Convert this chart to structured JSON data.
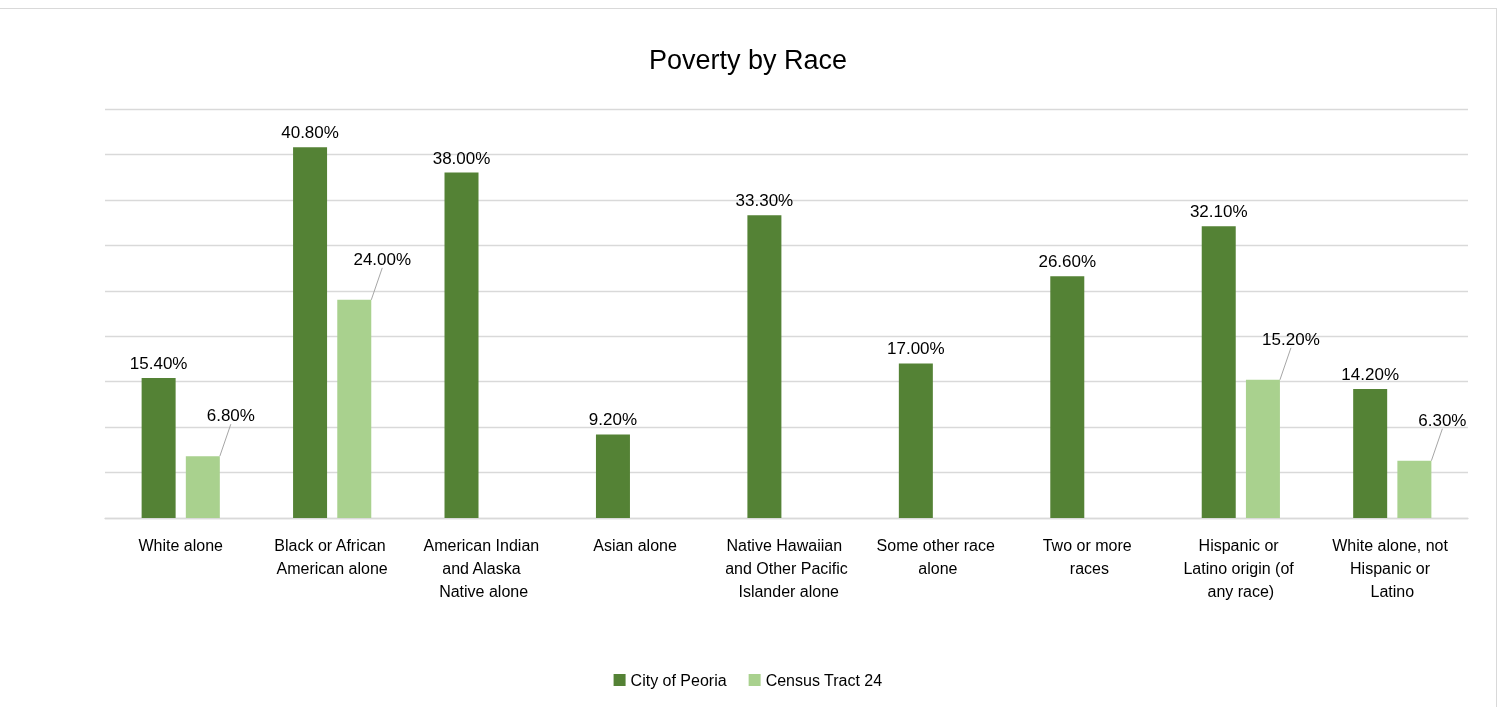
{
  "chart_data": {
    "type": "bar",
    "title": "Poverty by Race",
    "categories": [
      "White alone",
      "Black or African American alone",
      "American Indian and Alaska Native alone",
      "Asian alone",
      "Native Hawaiian and Other Pacific Islander alone",
      "Some other race alone",
      "Two or more races",
      "Hispanic or Latino origin (of any race)",
      "White alone, not Hispanic or Latino"
    ],
    "series": [
      {
        "name": "City of Peoria",
        "color": "#548235",
        "values": [
          15.4,
          40.8,
          38.0,
          9.2,
          33.3,
          17.0,
          26.6,
          32.1,
          14.2
        ],
        "value_labels": [
          "15.40%",
          "40.80%",
          "38.00%",
          "9.20%",
          "33.30%",
          "17.00%",
          "26.60%",
          "32.10%",
          "14.20%"
        ]
      },
      {
        "name": "Census Tract 24",
        "color": "#a9d18e",
        "values": [
          6.8,
          24.0,
          null,
          null,
          null,
          null,
          null,
          15.2,
          6.3
        ],
        "value_labels": [
          "6.80%",
          "24.00%",
          null,
          null,
          null,
          null,
          null,
          "15.20%",
          "6.30%"
        ]
      }
    ],
    "ylim": [
      0,
      45
    ],
    "yticks": [
      {
        "value": 0,
        "label": null
      },
      {
        "value": 5,
        "label": null
      },
      {
        "value": 10,
        "label": null
      },
      {
        "value": 15,
        "label": null
      },
      {
        "value": 20,
        "label": null
      },
      {
        "value": 25,
        "label": null
      },
      {
        "value": 30,
        "label": null
      },
      {
        "value": 35,
        "label": null
      },
      {
        "value": 40,
        "label": null
      },
      {
        "value": 45,
        "label": null
      }
    ],
    "grid": "y",
    "tick_labels": "x",
    "legend": "bottom"
  }
}
